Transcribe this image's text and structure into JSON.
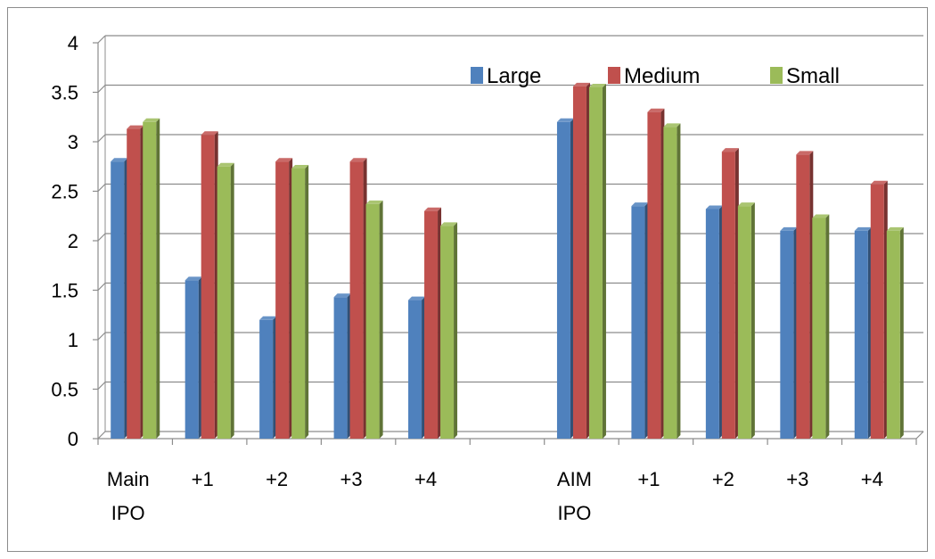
{
  "chart_data": {
    "type": "bar",
    "categories": [
      {
        "lines": [
          "Main",
          "IPO"
        ]
      },
      {
        "lines": [
          "+1"
        ]
      },
      {
        "lines": [
          "+2"
        ]
      },
      {
        "lines": [
          "+3"
        ]
      },
      {
        "lines": [
          "+4"
        ]
      },
      {
        "lines": []
      },
      {
        "lines": [
          "AIM",
          "IPO"
        ]
      },
      {
        "lines": [
          "+1"
        ]
      },
      {
        "lines": [
          "+2"
        ]
      },
      {
        "lines": [
          "+3"
        ]
      },
      {
        "lines": [
          "+4"
        ]
      }
    ],
    "series": [
      {
        "name": "Large",
        "color": "#4F81BD",
        "values": [
          2.8,
          1.6,
          1.2,
          1.43,
          1.4,
          null,
          3.2,
          2.35,
          2.32,
          2.1,
          2.1
        ]
      },
      {
        "name": "Medium",
        "color": "#C0504D",
        "values": [
          3.13,
          3.07,
          2.8,
          2.8,
          2.3,
          null,
          3.56,
          3.3,
          2.9,
          2.87,
          2.57
        ]
      },
      {
        "name": "Small",
        "color": "#9BBB59",
        "values": [
          3.2,
          2.75,
          2.73,
          2.37,
          2.15,
          null,
          3.55,
          3.15,
          2.35,
          2.23,
          2.1
        ]
      }
    ],
    "y_ticks": [
      "0",
      "0.5",
      "1",
      "1.5",
      "2",
      "2.5",
      "3",
      "3.5",
      "4"
    ],
    "ylim": [
      0,
      4
    ],
    "grid": true,
    "legend": "top-right"
  }
}
